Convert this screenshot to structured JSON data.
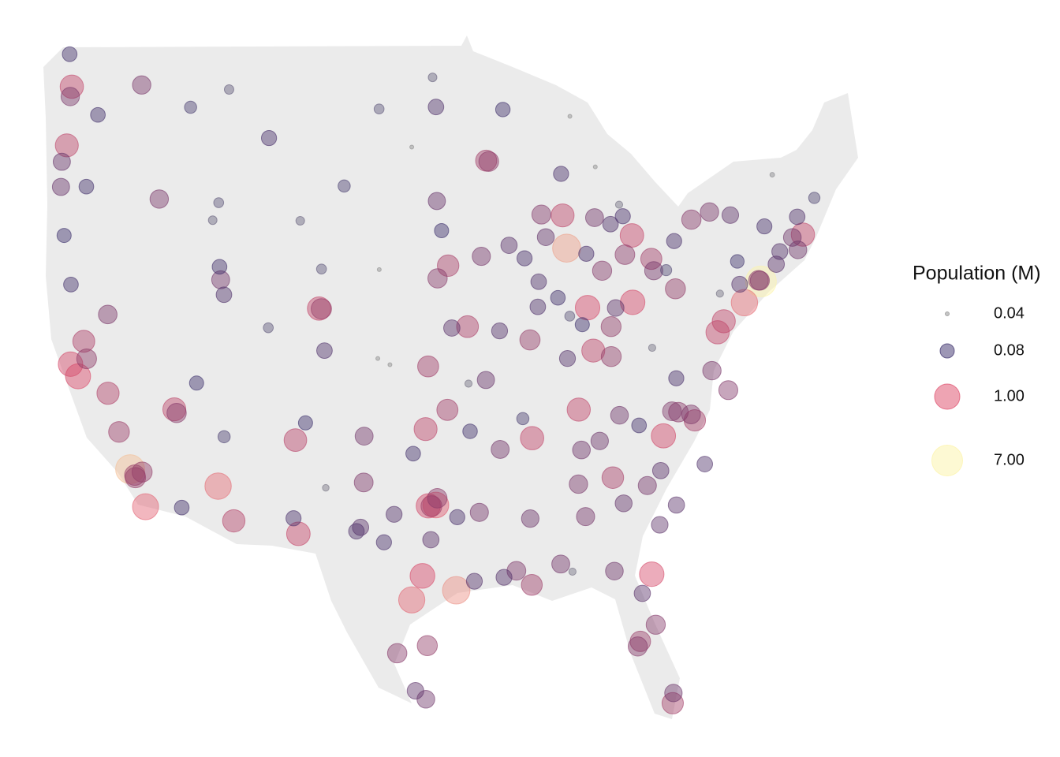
{
  "chart_data": {
    "type": "bubble-map",
    "x": [
      -74.0,
      -118.24,
      -87.63,
      -95.37,
      -112.07,
      -75.16,
      -98.49,
      -117.16,
      -96.8,
      -121.89,
      -97.74,
      -81.66,
      -122.42,
      -83.0,
      -86.16,
      -97.33,
      -80.84,
      -122.33,
      -104.99,
      -106.44,
      -83.05,
      -77.04,
      -71.06,
      -90.05,
      -86.78,
      -122.68,
      -97.52,
      -115.14,
      -76.61,
      -85.76,
      -87.91,
      -106.65,
      -110.97,
      -119.79,
      -121.49,
      -94.58,
      -84.39,
      -95.94,
      -78.64,
      -80.19,
      -93.27,
      -95.99,
      -81.69,
      -97.34,
      -90.07,
      -97.11,
      -119.02,
      -82.46,
      -104.83,
      -117.91,
      -117.87,
      -90.2,
      -117.4,
      -97.4,
      -80.0,
      -84.5,
      -121.29,
      -84.51,
      -93.09,
      -83.54,
      -74.17,
      -79.79,
      -96.7,
      -78.88,
      -96.68,
      -114.98,
      -85.14,
      -74.08,
      -82.64,
      -81.38,
      -76.29,
      -89.4,
      -101.86,
      -78.9,
      -80.24,
      -91.15,
      -119.81,
      -116.2,
      -77.44,
      -117.43,
      -93.61,
      -86.8,
      -77.61,
      -86.3,
      -93.75,
      -111.89,
      -92.29,
      -101.83,
      -85.67,
      -86.59,
      -83.92,
      -71.41,
      -85.31,
      -80.14,
      -71.8,
      -93.29,
      -96.73,
      -84.28,
      -81.03,
      -81.1,
      -88.04,
      -90.18,
      -95.68,
      -76.15,
      -84.19,
      -87.57,
      -89.59,
      -96.79,
      -91.67,
      -89.65,
      -88.02,
      -92.1,
      -108.5,
      -114.0,
      -111.3,
      -100.78,
      -103.23,
      -106.31,
      -104.82,
      -104.61,
      -108.55,
      -111.65,
      -105.94,
      -106.78,
      -102.08,
      -100.44,
      -99.51,
      -97.5,
      -98.23,
      -123.09,
      -123.03,
      -122.87,
      -122.39,
      -121.31,
      -120.5,
      -122.44,
      -122.48,
      -112.45,
      -112.03,
      -111.66,
      -111.97,
      -113.58,
      -114.62,
      -98.39,
      -99.73,
      -97.15,
      -95.3,
      -94.1,
      -92.02,
      -82.32,
      -87.22,
      -83.63,
      -81.97,
      -79.93,
      -77.94,
      -82.55,
      -79.94,
      -81.63,
      -76.88,
      -75.49,
      -75.66,
      -73.76,
      -73.21,
      -70.26,
      -71.46,
      -72.68,
      -72.93,
      -80.09,
      -84.55,
      -83.69,
      -83.95,
      -85.62,
      -87.4,
      -89.09,
      -90.58,
      -92.33,
      -94.51,
      -94.4,
      -90.7,
      -86.25,
      -88.24,
      -87.41,
      -86.53,
      -81.52,
      -80.65,
      -96.4,
      -97.03,
      -98.49,
      -100.77,
      -100.02,
      -100.87,
      -104.52,
      -102.37
    ],
    "y": [
      40.7,
      34.05,
      41.88,
      29.76,
      33.45,
      39.95,
      29.42,
      32.72,
      32.78,
      37.34,
      30.27,
      30.33,
      37.77,
      39.96,
      39.77,
      32.75,
      35.23,
      47.6,
      39.74,
      31.76,
      42.33,
      38.9,
      42.36,
      35.15,
      36.16,
      45.52,
      35.47,
      36.17,
      39.29,
      38.25,
      43.04,
      35.08,
      32.22,
      36.74,
      38.58,
      39.1,
      33.75,
      41.26,
      35.78,
      25.76,
      44.98,
      36.15,
      41.5,
      37.69,
      29.95,
      32.74,
      35.37,
      27.95,
      39.73,
      33.84,
      33.75,
      38.63,
      33.95,
      27.8,
      40.44,
      38.04,
      37.96,
      39.1,
      44.95,
      41.65,
      40.74,
      36.07,
      33.02,
      42.89,
      40.81,
      36.04,
      41.08,
      40.73,
      27.77,
      28.54,
      36.85,
      43.07,
      33.58,
      35.99,
      36.1,
      30.45,
      39.53,
      43.62,
      37.54,
      47.66,
      41.59,
      33.52,
      43.16,
      32.37,
      32.52,
      40.76,
      34.75,
      35.22,
      42.96,
      34.73,
      35.96,
      41.82,
      35.05,
      26.12,
      42.26,
      37.21,
      43.55,
      30.44,
      34.0,
      32.08,
      30.69,
      32.3,
      39.05,
      43.05,
      39.76,
      37.97,
      40.69,
      46.88,
      41.98,
      39.8,
      44.51,
      46.79,
      45.78,
      46.87,
      47.5,
      46.81,
      44.08,
      42.85,
      41.14,
      38.25,
      39.06,
      35.2,
      35.69,
      32.31,
      31.99,
      31.46,
      27.53,
      25.9,
      26.2,
      44.05,
      44.94,
      42.33,
      40.59,
      44.06,
      46.6,
      47.25,
      48.75,
      42.87,
      43.49,
      40.23,
      41.22,
      37.1,
      32.69,
      34.6,
      32.45,
      31.55,
      32.35,
      30.08,
      30.22,
      29.65,
      30.42,
      32.84,
      33.47,
      32.78,
      34.23,
      35.6,
      37.27,
      38.35,
      40.27,
      40.6,
      41.41,
      42.65,
      44.48,
      43.66,
      42.99,
      41.76,
      41.31,
      42.13,
      42.73,
      43.01,
      43.42,
      44.76,
      46.55,
      42.27,
      41.52,
      38.95,
      37.08,
      35.39,
      35.84,
      41.68,
      40.12,
      39.47,
      39.17,
      41.08,
      41.1,
      42.5,
      47.93,
      45.46,
      41.12,
      37.75,
      37.97,
      33.39,
      31.85
    ],
    "sizes": [
      7.0,
      3.8,
      2.7,
      2.2,
      1.5,
      1.5,
      1.4,
      1.3,
      1.2,
      0.95,
      0.9,
      0.85,
      0.85,
      0.85,
      0.85,
      0.8,
      0.8,
      0.65,
      0.65,
      0.68,
      0.68,
      0.65,
      0.65,
      0.65,
      0.63,
      0.6,
      0.6,
      0.6,
      0.62,
      0.6,
      0.6,
      0.55,
      0.52,
      0.5,
      0.47,
      0.46,
      0.44,
      0.43,
      0.42,
      0.41,
      0.39,
      0.39,
      0.39,
      0.38,
      0.37,
      0.37,
      0.36,
      0.34,
      0.33,
      0.34,
      0.33,
      0.32,
      0.31,
      0.31,
      0.31,
      0.3,
      0.29,
      0.3,
      0.29,
      0.28,
      0.28,
      0.28,
      0.27,
      0.26,
      0.26,
      0.26,
      0.25,
      0.25,
      0.25,
      0.25,
      0.24,
      0.24,
      0.23,
      0.23,
      0.23,
      0.23,
      0.22,
      0.21,
      0.21,
      0.21,
      0.2,
      0.21,
      0.21,
      0.2,
      0.2,
      0.19,
      0.19,
      0.19,
      0.19,
      0.18,
      0.18,
      0.18,
      0.17,
      0.17,
      0.18,
      0.16,
      0.16,
      0.18,
      0.13,
      0.14,
      0.19,
      0.17,
      0.13,
      0.14,
      0.14,
      0.12,
      0.11,
      0.11,
      0.13,
      0.11,
      0.1,
      0.086,
      0.1,
      0.07,
      0.058,
      0.06,
      0.07,
      0.055,
      0.06,
      0.11,
      0.06,
      0.07,
      0.08,
      0.1,
      0.13,
      0.1,
      0.26,
      0.18,
      0.14,
      0.16,
      0.16,
      0.08,
      0.09,
      0.09,
      0.09,
      0.21,
      0.09,
      0.055,
      0.06,
      0.11,
      0.09,
      0.08,
      0.09,
      0.09,
      0.12,
      0.13,
      0.1,
      0.12,
      0.12,
      0.13,
      0.05,
      0.15,
      0.2,
      0.13,
      0.11,
      0.09,
      0.1,
      0.05,
      0.05,
      0.12,
      0.077,
      0.098,
      0.042,
      0.066,
      0.11,
      0.12,
      0.13,
      0.1,
      0.11,
      0.1,
      0.05,
      0.04,
      0.04,
      0.15,
      0.1,
      0.12,
      0.05,
      0.087,
      0.07,
      0.1,
      0.088,
      0.06,
      0.08,
      0.2,
      0.065,
      0.08,
      0.055,
      0.04,
      0.04,
      0.04,
      0.04,
      0.048,
      0.11
    ],
    "size_legend": {
      "title": "Population (M)",
      "values": [
        0.04,
        0.08,
        {
          "value": 1,
          "label": "1.00"
        },
        {
          "value": 7,
          "label": "7.00"
        }
      ],
      "colors": [
        "#8c8c8c",
        "#3b2f6b",
        "#de4968",
        "#fcf3a8"
      ]
    }
  }
}
